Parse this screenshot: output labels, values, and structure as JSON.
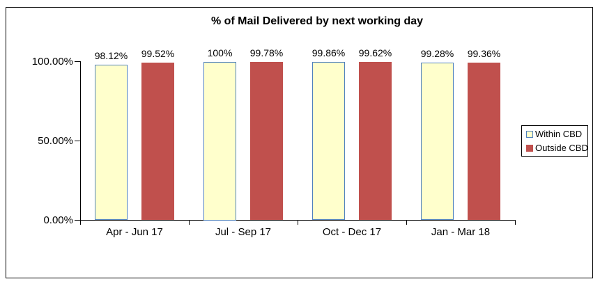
{
  "chart_data": {
    "type": "bar",
    "title": "% of Mail Delivered by next working day",
    "categories": [
      "Apr - Jun 17",
      "Jul - Sep 17",
      "Oct - Dec 17",
      "Jan - Mar 18"
    ],
    "series": [
      {
        "name": "Within CBD",
        "values": [
          98.12,
          100,
          99.86,
          99.28
        ],
        "data_labels": [
          "98.12%",
          "100%",
          "99.86%",
          "99.28%"
        ],
        "fill": "#FFFFCC",
        "border": "#4F81BD"
      },
      {
        "name": "Outside CBD",
        "values": [
          99.52,
          99.78,
          99.62,
          99.36
        ],
        "data_labels": [
          "99.52%",
          "99.78%",
          "99.62%",
          "99.36%"
        ],
        "fill": "#C0504D",
        "border": "#C0504D"
      }
    ],
    "y_axis": {
      "min": 0,
      "max": 100,
      "ticks": [
        {
          "label": "0.00%",
          "value": 0
        },
        {
          "label": "50.00%",
          "value": 50
        },
        {
          "label": "100.00%",
          "value": 100
        }
      ]
    },
    "grid": false,
    "legend_position": "right",
    "axis_color": "#000000",
    "text_color": "#000000",
    "background": "#FFFFFF"
  }
}
